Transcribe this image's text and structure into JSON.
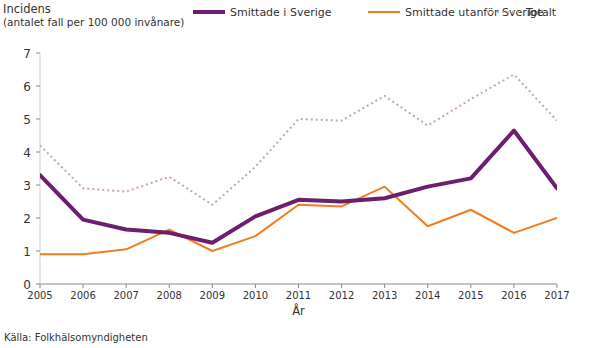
{
  "chart_data": {
    "type": "line",
    "y_label": "Incidens",
    "subtitle": "(antalet fall per 100 000 invånare)",
    "x_label": "År",
    "source": "Källa: Folkhälsomyndigheten",
    "x": [
      2005,
      2006,
      2007,
      2008,
      2009,
      2010,
      2011,
      2012,
      2013,
      2014,
      2015,
      2016,
      2017
    ],
    "series": [
      {
        "name": "Smittade i Sverige",
        "color": "#6b1f6e",
        "line_style": "solid",
        "values": [
          3.3,
          1.95,
          1.65,
          1.55,
          1.25,
          2.05,
          2.55,
          2.5,
          2.6,
          2.95,
          3.2,
          4.65,
          2.9
        ]
      },
      {
        "name": "Smittade utanför Sverige",
        "color": "#f07d1e",
        "line_style": "solid",
        "values": [
          0.9,
          0.9,
          1.05,
          1.65,
          1.0,
          1.45,
          2.4,
          2.35,
          2.95,
          1.75,
          2.25,
          1.55,
          2.0
        ]
      },
      {
        "name": "Totalt",
        "color": "#c9a3b6",
        "line_style": "dotted",
        "values": [
          4.2,
          2.9,
          2.8,
          3.25,
          2.4,
          3.55,
          5.0,
          4.95,
          5.7,
          4.8,
          5.6,
          6.35,
          4.95
        ]
      }
    ],
    "xlim": [
      2005,
      2017
    ],
    "xticks": [
      2005,
      2006,
      2007,
      2008,
      2009,
      2010,
      2011,
      2012,
      2013,
      2014,
      2015,
      2016,
      2017
    ],
    "ylim": [
      0,
      7
    ],
    "yticks": [
      0,
      1,
      2,
      3,
      4,
      5,
      6,
      7
    ],
    "grid": false,
    "legend": "top"
  }
}
